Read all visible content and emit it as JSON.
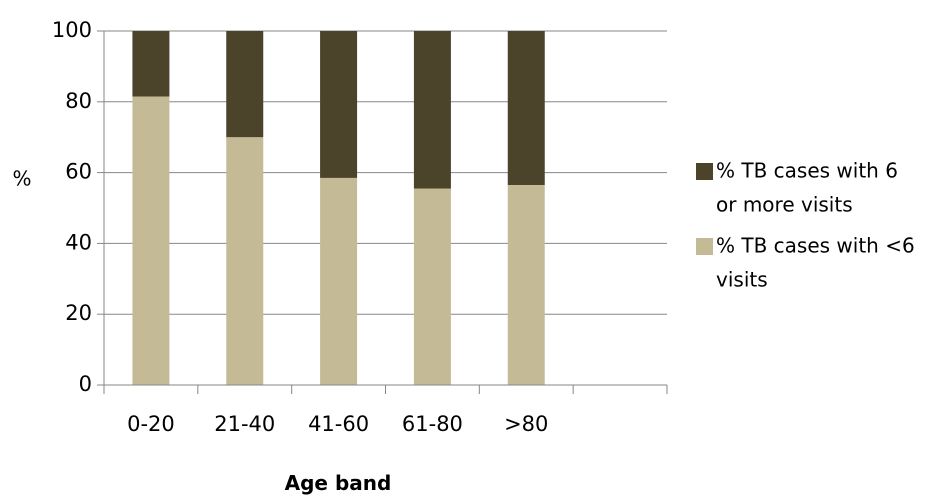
{
  "chart_data": {
    "type": "bar",
    "stacked": true,
    "percent": true,
    "categories": [
      "0-20",
      "21-40",
      "41-60",
      "61-80",
      ">80"
    ],
    "series": [
      {
        "name": "% TB cases with <6 visits",
        "color": "#c4bb96",
        "values": [
          81.5,
          70,
          58.5,
          55.5,
          56.5
        ]
      },
      {
        "name": "% TB cases with 6 or more visits",
        "color": "#4b442a",
        "values": [
          18.5,
          30,
          41.5,
          44.5,
          43.5
        ]
      }
    ],
    "title": "",
    "xlabel": "Age band",
    "ylabel": "%",
    "ylim": [
      0,
      100
    ],
    "yticks": [
      "0",
      "20",
      "40",
      "60",
      "80",
      "100"
    ],
    "grid": true,
    "legend_position": "right",
    "legend": [
      {
        "series": 1,
        "lines": [
          "% TB cases with 6",
          "or more visits"
        ]
      },
      {
        "series": 0,
        "lines": [
          "% TB cases with <6",
          "visits"
        ]
      }
    ]
  }
}
